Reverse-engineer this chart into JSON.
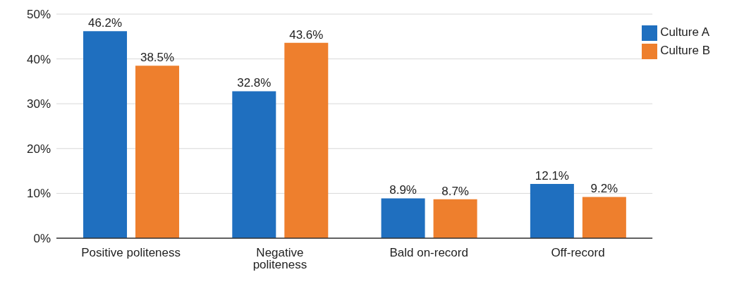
{
  "chart_data": {
    "type": "bar",
    "categories": [
      "Positive politeness",
      "Negative politeness",
      "Bald on-record",
      "Off-record"
    ],
    "series": [
      {
        "name": "Culture A",
        "color": "#1f6fbf",
        "values": [
          46.2,
          32.8,
          8.9,
          12.1
        ],
        "value_labels": [
          "46.2%",
          "32.8%",
          "8.9%",
          "12.1%"
        ]
      },
      {
        "name": "Culture B",
        "color": "#ee7f2d",
        "values": [
          38.5,
          43.6,
          8.7,
          9.2
        ],
        "value_labels": [
          "38.5%",
          "43.6%",
          "8.7%",
          "9.2%"
        ]
      }
    ],
    "ylim": [
      0,
      50
    ],
    "yticks": [
      {
        "value": 0,
        "label": "0%"
      },
      {
        "value": 10,
        "label": "10%"
      },
      {
        "value": 20,
        "label": "20%"
      },
      {
        "value": 30,
        "label": "30%"
      },
      {
        "value": 40,
        "label": "40%"
      },
      {
        "value": 50,
        "label": "50%"
      }
    ],
    "grid": "y",
    "legend": "top right"
  }
}
